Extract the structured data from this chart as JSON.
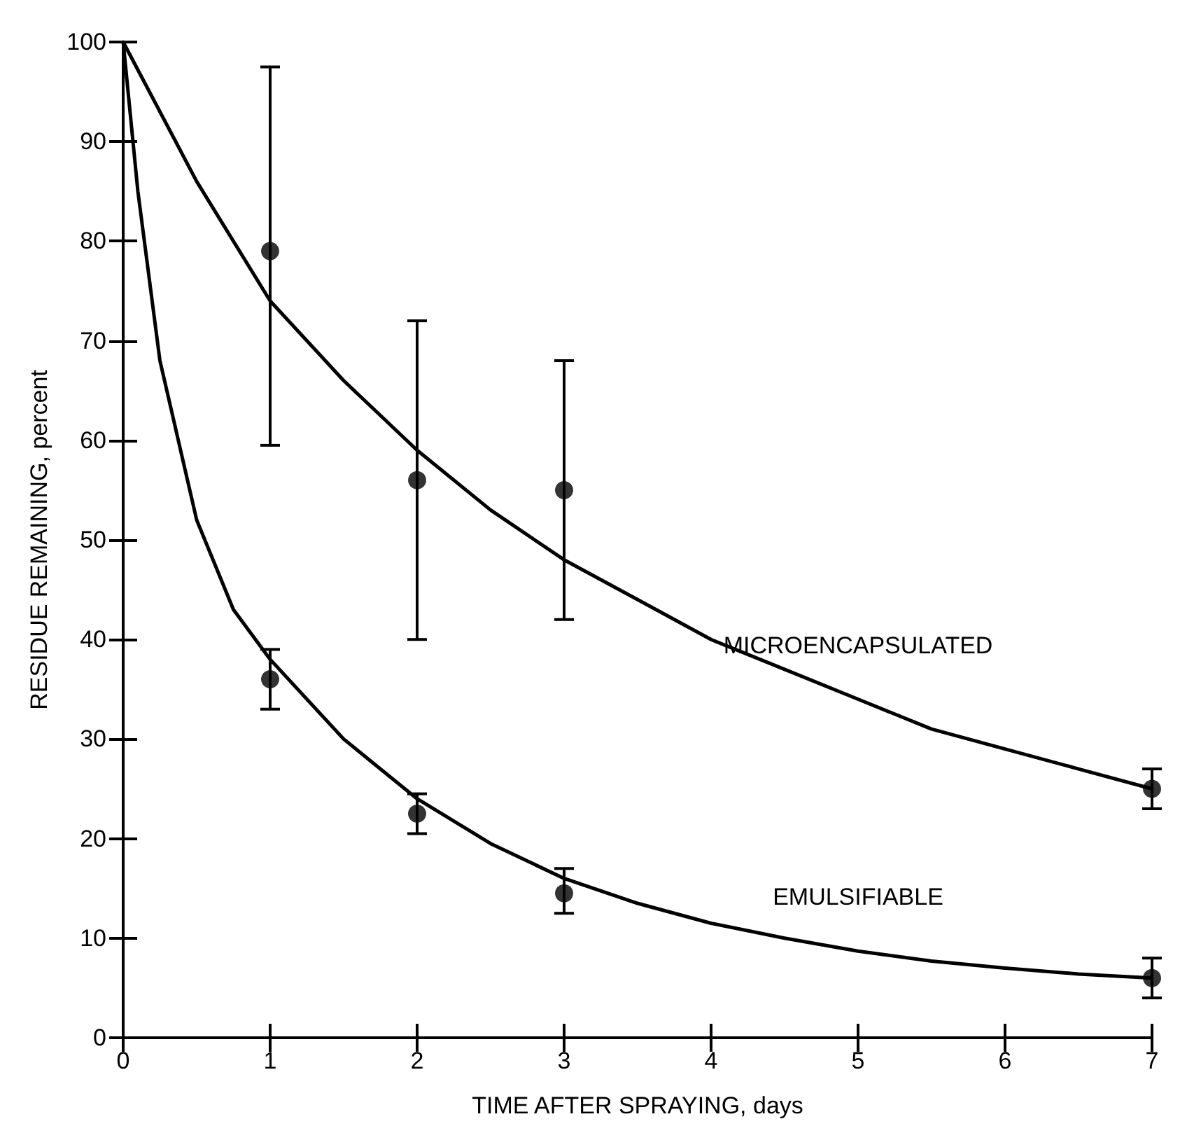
{
  "chart_data": {
    "type": "scatter",
    "xlabel": "TIME AFTER SPRAYING, days",
    "ylabel": "RESIDUE REMAINING, percent",
    "xlim": [
      0,
      7
    ],
    "xticks": [
      0,
      1,
      2,
      3,
      4,
      5,
      6,
      7
    ],
    "ylim": [
      0,
      100
    ],
    "yticks": [
      0,
      10,
      20,
      30,
      40,
      50,
      60,
      70,
      80,
      90,
      100
    ],
    "grid": false,
    "legend": false,
    "marker": "circle",
    "series": [
      {
        "type": "scatter",
        "color": "#000000",
        "x": [
          1,
          2,
          3,
          7
        ],
        "values": [
          79,
          56,
          55,
          25
        ],
        "errors": [
          [
            59.5,
            97.5
          ],
          [
            40,
            72
          ],
          [
            42,
            68
          ],
          [
            23,
            27
          ]
        ]
      },
      {
        "type": "scatter",
        "color": "#000000",
        "x": [
          1,
          2,
          3,
          7
        ],
        "values": [
          36,
          22.5,
          14.5,
          6
        ],
        "errors": [
          [
            33,
            39
          ],
          [
            20.5,
            24.5
          ],
          [
            12.5,
            17
          ],
          [
            4,
            8
          ]
        ]
      },
      {
        "type": "line",
        "name": "MICROENCAPSULATED",
        "color": "#000000",
        "marker": "none",
        "line_style": "solid",
        "x": [
          0,
          0.5,
          1,
          1.5,
          2,
          2.5,
          3,
          3.5,
          4,
          4.5,
          5,
          5.5,
          6,
          6.5,
          7
        ],
        "values": [
          100,
          86,
          74,
          66,
          59,
          53,
          48,
          44,
          40,
          37,
          34,
          31,
          29,
          27,
          25
        ]
      },
      {
        "type": "line",
        "name": "EMULSIFIABLE",
        "color": "#000000",
        "marker": "none",
        "line_style": "solid",
        "x": [
          0,
          0.1,
          0.25,
          0.5,
          0.75,
          1,
          1.5,
          2,
          2.5,
          3,
          3.5,
          4,
          4.5,
          5,
          5.5,
          6,
          6.5,
          7
        ],
        "values": [
          100,
          85,
          68,
          52,
          43,
          38,
          30,
          24,
          19.5,
          16,
          13.5,
          11.5,
          10,
          8.7,
          7.7,
          7,
          6.4,
          6
        ]
      }
    ]
  }
}
